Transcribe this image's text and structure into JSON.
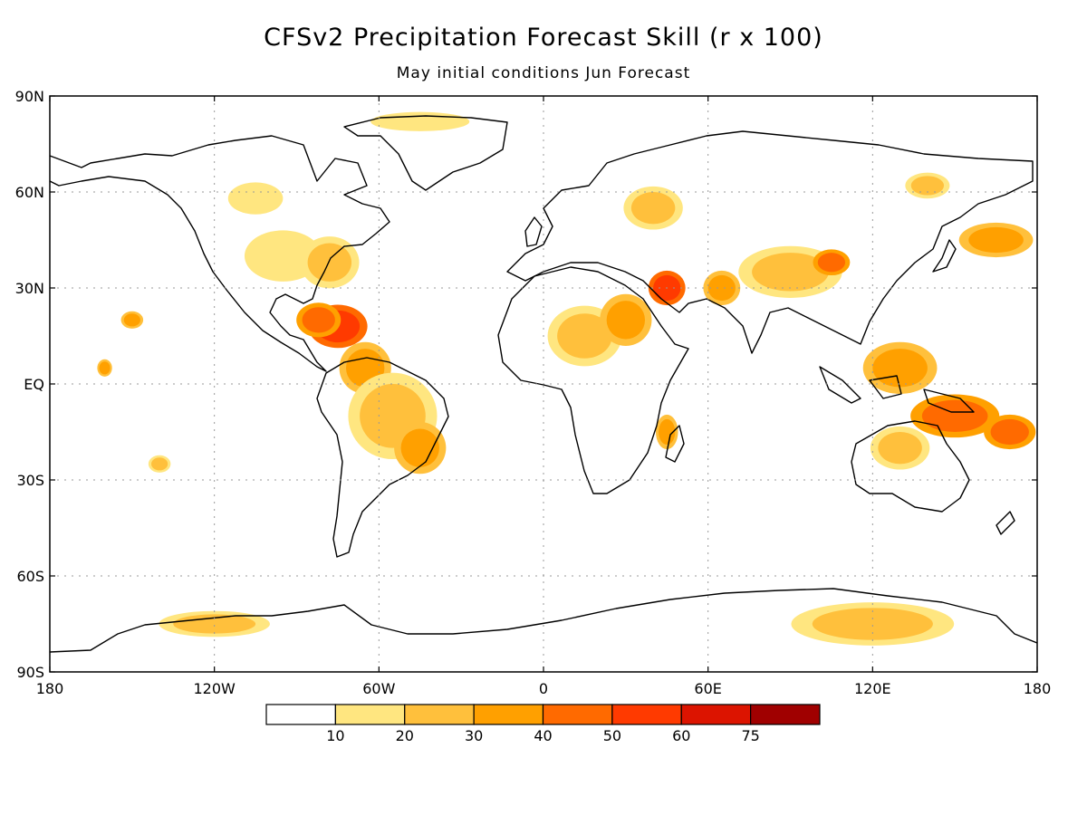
{
  "title": "CFSv2 Precipitation Forecast Skill (r x 100)",
  "subtitle": "May initial conditions   Jun Forecast",
  "map": {
    "projection": "equirectangular",
    "lon_range": [
      -180,
      180
    ],
    "lat_range": [
      -90,
      90
    ],
    "grid": true,
    "lat_ticks": [
      {
        "value": 90,
        "label": "90N"
      },
      {
        "value": 60,
        "label": "60N"
      },
      {
        "value": 30,
        "label": "30N"
      },
      {
        "value": 0,
        "label": "EQ"
      },
      {
        "value": -30,
        "label": "30S"
      },
      {
        "value": -60,
        "label": "60S"
      },
      {
        "value": -90,
        "label": "90S"
      }
    ],
    "lon_ticks": [
      {
        "value": -180,
        "label": "180"
      },
      {
        "value": -120,
        "label": "120W"
      },
      {
        "value": -60,
        "label": "60W"
      },
      {
        "value": 0,
        "label": "0"
      },
      {
        "value": 60,
        "label": "60E"
      },
      {
        "value": 120,
        "label": "120E"
      },
      {
        "value": 180,
        "label": "180"
      }
    ]
  },
  "colorbar": {
    "colors": [
      "#ffffff",
      "#ffe680",
      "#ffc03c",
      "#ffa000",
      "#ff6a00",
      "#ff3a00",
      "#dc1400",
      "#a00000"
    ],
    "labels": [
      "10",
      "20",
      "30",
      "40",
      "50",
      "60",
      "75"
    ]
  },
  "skill_regions": [
    {
      "lon": -95,
      "lat": 40,
      "rx": 14,
      "ry": 8,
      "level": 1
    },
    {
      "lon": -78,
      "lat": 38,
      "rx": 8,
      "ry": 6,
      "level": 2
    },
    {
      "lon": -105,
      "lat": 58,
      "rx": 10,
      "ry": 5,
      "level": 1
    },
    {
      "lon": -75,
      "lat": 18,
      "rx": 8,
      "ry": 5,
      "level": 5
    },
    {
      "lon": -82,
      "lat": 20,
      "rx": 6,
      "ry": 4,
      "level": 4
    },
    {
      "lon": -65,
      "lat": 5,
      "rx": 7,
      "ry": 6,
      "level": 3
    },
    {
      "lon": -55,
      "lat": -10,
      "rx": 12,
      "ry": 10,
      "level": 2
    },
    {
      "lon": -45,
      "lat": -20,
      "rx": 7,
      "ry": 6,
      "level": 3
    },
    {
      "lon": -150,
      "lat": 20,
      "rx": 3,
      "ry": 2,
      "level": 3
    },
    {
      "lon": -160,
      "lat": 5,
      "rx": 2,
      "ry": 2,
      "level": 3
    },
    {
      "lon": -140,
      "lat": -25,
      "rx": 3,
      "ry": 2,
      "level": 2
    },
    {
      "lon": 15,
      "lat": 15,
      "rx": 10,
      "ry": 7,
      "level": 2
    },
    {
      "lon": 30,
      "lat": 20,
      "rx": 7,
      "ry": 6,
      "level": 3
    },
    {
      "lon": 45,
      "lat": 30,
      "rx": 5,
      "ry": 4,
      "level": 5
    },
    {
      "lon": 40,
      "lat": 55,
      "rx": 8,
      "ry": 5,
      "level": 2
    },
    {
      "lon": 90,
      "lat": 35,
      "rx": 14,
      "ry": 6,
      "level": 2
    },
    {
      "lon": 105,
      "lat": 38,
      "rx": 5,
      "ry": 3,
      "level": 4
    },
    {
      "lon": 65,
      "lat": 30,
      "rx": 5,
      "ry": 4,
      "level": 3
    },
    {
      "lon": 130,
      "lat": 5,
      "rx": 10,
      "ry": 6,
      "level": 3
    },
    {
      "lon": 150,
      "lat": -10,
      "rx": 12,
      "ry": 5,
      "level": 4
    },
    {
      "lon": 170,
      "lat": -15,
      "rx": 7,
      "ry": 4,
      "level": 4
    },
    {
      "lon": 130,
      "lat": -20,
      "rx": 8,
      "ry": 5,
      "level": 2
    },
    {
      "lon": 45,
      "lat": -15,
      "rx": 3,
      "ry": 4,
      "level": 3
    },
    {
      "lon": 120,
      "lat": -75,
      "rx": 22,
      "ry": 5,
      "level": 2
    },
    {
      "lon": 165,
      "lat": 45,
      "rx": 10,
      "ry": 4,
      "level": 3
    },
    {
      "lon": 140,
      "lat": 62,
      "rx": 6,
      "ry": 3,
      "level": 2
    },
    {
      "lon": -45,
      "lat": 82,
      "rx": 18,
      "ry": 3,
      "level": 1
    },
    {
      "lon": -120,
      "lat": -75,
      "rx": 15,
      "ry": 3,
      "level": 2
    }
  ]
}
